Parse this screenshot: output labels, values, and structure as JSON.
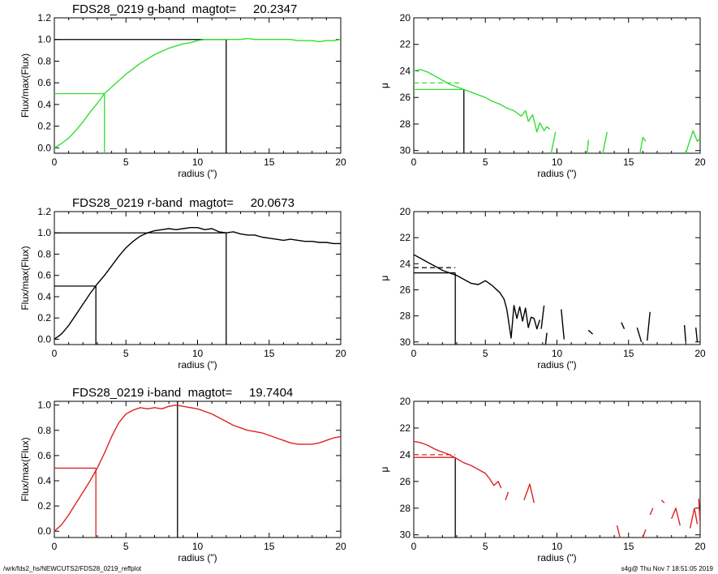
{
  "footer": {
    "left": "/wrk/fds2_hs/NEWCUTS2/FDS28_0219_reffplot",
    "right": "s4g@  Thu Nov  7 18:51:05 2019"
  },
  "chart_data": [
    {
      "type": "line",
      "title": "FDS28_0219 g-band  magtot=     20.2347",
      "xlabel": "radius (\")",
      "ylabel": "Flux/max(Flux)",
      "xlim": [
        0,
        20
      ],
      "ylim": [
        -0.05,
        1.2
      ],
      "xticks": [
        0,
        5,
        10,
        15,
        20
      ],
      "yticks": [
        0.0,
        0.2,
        0.4,
        0.6,
        0.8,
        1.0,
        1.2
      ],
      "color": "#33dd33",
      "series": [
        {
          "x": [
            0,
            0.5,
            1,
            1.5,
            2,
            2.5,
            3,
            3.5,
            4,
            4.5,
            5,
            5.5,
            6,
            6.5,
            7,
            7.5,
            8,
            8.5,
            9,
            9.5,
            10,
            10.5,
            11,
            11.5,
            12,
            12.5,
            13,
            13.5,
            14,
            14.5,
            15,
            15.5,
            16,
            16.5,
            17,
            17.5,
            18,
            18.5,
            19,
            19.5,
            20
          ],
          "y": [
            0.0,
            0.04,
            0.09,
            0.16,
            0.24,
            0.33,
            0.41,
            0.5,
            0.56,
            0.62,
            0.68,
            0.73,
            0.78,
            0.82,
            0.86,
            0.89,
            0.92,
            0.94,
            0.96,
            0.97,
            0.99,
            1.0,
            1.0,
            1.0,
            1.0,
            1.0,
            1.0,
            1.01,
            1.0,
            1.0,
            1.0,
            1.0,
            1.0,
            1.0,
            0.99,
            0.99,
            0.99,
            0.98,
            0.99,
            0.99,
            1.0
          ]
        }
      ],
      "reference_lines": [
        {
          "from": [
            0,
            0.5
          ],
          "to": [
            3.5,
            0.5
          ],
          "color": "#33dd33"
        },
        {
          "from": [
            3.5,
            0.5
          ],
          "to": [
            3.5,
            -0.05
          ],
          "color": "#33dd33"
        },
        {
          "from": [
            0,
            1.0
          ],
          "to": [
            12,
            1.0
          ],
          "color": "#000000"
        },
        {
          "from": [
            12,
            1.0
          ],
          "to": [
            12,
            -0.05
          ],
          "color": "#000000"
        }
      ]
    },
    {
      "type": "line",
      "title": "",
      "xlabel": "radius (\")",
      "ylabel": "μ",
      "xlim": [
        0,
        20
      ],
      "ylim": [
        30.2,
        20
      ],
      "xticks": [
        0,
        5,
        10,
        15,
        20
      ],
      "yticks": [
        20,
        22,
        24,
        26,
        28,
        30
      ],
      "color": "#33dd33",
      "segments": [
        {
          "x": [
            0,
            0.5,
            1,
            1.5,
            2,
            2.5,
            3,
            3.5,
            4,
            4.5,
            5,
            5.5,
            6,
            6.5,
            7,
            7.5,
            7.8,
            8,
            8.3,
            8.6,
            8.8,
            9.1,
            9.3,
            9.5
          ],
          "y": [
            24.0,
            23.9,
            24.1,
            24.4,
            24.7,
            25.0,
            25.2,
            25.4,
            25.6,
            25.8,
            26.0,
            26.3,
            26.5,
            26.8,
            27.0,
            27.4,
            27.0,
            27.8,
            27.3,
            28.6,
            27.9,
            28.5,
            28.2,
            28.4
          ]
        },
        {
          "x": [
            9.6,
            9.9
          ],
          "y": [
            30.2,
            28.6
          ]
        },
        {
          "x": [
            12.1,
            12.2
          ],
          "y": [
            30.2,
            29.2
          ]
        },
        {
          "x": [
            13.2,
            13.5
          ],
          "y": [
            30.2,
            28.6
          ]
        },
        {
          "x": [
            15.8,
            16.0,
            16.2
          ],
          "y": [
            30.2,
            29.0,
            29.3
          ]
        },
        {
          "x": [
            19.0,
            19.5,
            19.8,
            20.0
          ],
          "y": [
            30.2,
            28.5,
            29.3,
            29.1
          ]
        }
      ],
      "reference_lines": [
        {
          "from": [
            0,
            25.4
          ],
          "to": [
            3.5,
            25.4
          ],
          "color": "#33dd33"
        },
        {
          "from": [
            0,
            24.9
          ],
          "to": [
            3.2,
            24.9
          ],
          "color": "#33dd33",
          "dashed": true
        },
        {
          "from": [
            3.5,
            25.4
          ],
          "to": [
            3.5,
            30.2
          ],
          "color": "#000000"
        }
      ]
    },
    {
      "type": "line",
      "title": "FDS28_0219 r-band  magtot=     20.0673",
      "xlabel": "radius (\")",
      "ylabel": "Flux/max(Flux)",
      "xlim": [
        0,
        20
      ],
      "ylim": [
        -0.05,
        1.2
      ],
      "xticks": [
        0,
        5,
        10,
        15,
        20
      ],
      "yticks": [
        0.0,
        0.2,
        0.4,
        0.6,
        0.8,
        1.0,
        1.2
      ],
      "color": "#000000",
      "series": [
        {
          "x": [
            0,
            0.5,
            1,
            1.5,
            2,
            2.5,
            3,
            3.5,
            4,
            4.5,
            5,
            5.5,
            6,
            6.5,
            7,
            7.5,
            8,
            8.5,
            9,
            9.5,
            10,
            10.5,
            11,
            11.5,
            12,
            12.5,
            13,
            13.5,
            14,
            14.5,
            15,
            15.5,
            16,
            16.5,
            17,
            17.5,
            18,
            18.5,
            19,
            19.5,
            20
          ],
          "y": [
            0.0,
            0.05,
            0.13,
            0.23,
            0.33,
            0.43,
            0.52,
            0.6,
            0.69,
            0.78,
            0.86,
            0.92,
            0.97,
            1.0,
            1.02,
            1.03,
            1.04,
            1.03,
            1.04,
            1.05,
            1.05,
            1.03,
            1.04,
            1.01,
            1.0,
            1.01,
            0.99,
            0.98,
            0.98,
            0.96,
            0.95,
            0.94,
            0.93,
            0.94,
            0.93,
            0.92,
            0.92,
            0.91,
            0.91,
            0.9,
            0.9
          ]
        }
      ],
      "reference_lines": [
        {
          "from": [
            0,
            0.5
          ],
          "to": [
            2.9,
            0.5
          ],
          "color": "#000000"
        },
        {
          "from": [
            2.9,
            0.5
          ],
          "to": [
            2.9,
            -0.05
          ],
          "color": "#000000"
        },
        {
          "from": [
            0,
            1.0
          ],
          "to": [
            12,
            1.0
          ],
          "color": "#000000"
        },
        {
          "from": [
            12,
            1.0
          ],
          "to": [
            12,
            -0.05
          ],
          "color": "#000000"
        }
      ]
    },
    {
      "type": "line",
      "title": "",
      "xlabel": "radius (\")",
      "ylabel": "μ",
      "xlim": [
        0,
        20
      ],
      "ylim": [
        30.2,
        20
      ],
      "xticks": [
        0,
        5,
        10,
        15,
        20
      ],
      "yticks": [
        20,
        22,
        24,
        26,
        28,
        30
      ],
      "color": "#000000",
      "segments": [
        {
          "x": [
            0,
            0.5,
            1,
            1.5,
            2,
            2.5,
            3,
            3.5,
            4,
            4.5,
            5,
            5.5,
            6,
            6.3,
            6.5,
            6.8,
            7.0,
            7.2,
            7.4,
            7.6,
            7.8,
            8.0,
            8.2,
            8.4,
            8.6,
            8.8
          ],
          "y": [
            23.3,
            23.6,
            23.9,
            24.2,
            24.5,
            24.7,
            24.9,
            25.2,
            25.5,
            25.6,
            25.3,
            25.7,
            26.2,
            26.7,
            27.5,
            29.7,
            27.2,
            28.2,
            27.3,
            28.4,
            27.4,
            28.9,
            28.1,
            28.2,
            29.0,
            28.3
          ]
        },
        {
          "x": [
            8.9,
            9.1
          ],
          "y": [
            29.0,
            27.2
          ]
        },
        {
          "x": [
            9.2,
            9.3
          ],
          "y": [
            30.2,
            29.3
          ]
        },
        {
          "x": [
            10.3,
            10.5
          ],
          "y": [
            27.5,
            29.8
          ]
        },
        {
          "x": [
            12.2,
            12.5
          ],
          "y": [
            29.1,
            29.4
          ]
        },
        {
          "x": [
            14.5,
            14.7
          ],
          "y": [
            28.5,
            29.0
          ]
        },
        {
          "x": [
            15.6,
            15.9
          ],
          "y": [
            28.9,
            30.0
          ]
        },
        {
          "x": [
            16.3,
            16.5
          ],
          "y": [
            29.9,
            27.7
          ]
        },
        {
          "x": [
            18.9,
            19.0
          ],
          "y": [
            28.7,
            30.0
          ]
        },
        {
          "x": [
            19.7,
            19.8
          ],
          "y": [
            28.9,
            30.0
          ]
        }
      ],
      "reference_lines": [
        {
          "from": [
            0,
            24.7
          ],
          "to": [
            2.9,
            24.7
          ],
          "color": "#000000"
        },
        {
          "from": [
            0,
            24.3
          ],
          "to": [
            2.9,
            24.3
          ],
          "color": "#000000",
          "dashed": true
        },
        {
          "from": [
            2.9,
            24.7
          ],
          "to": [
            2.9,
            30.2
          ],
          "color": "#000000"
        }
      ]
    },
    {
      "type": "line",
      "title": "FDS28_0219 i-band  magtot=     19.7404",
      "xlabel": "radius (\")",
      "ylabel": "Flux/max(Flux)",
      "xlim": [
        0,
        20
      ],
      "ylim": [
        -0.05,
        1.03
      ],
      "xticks": [
        0,
        5,
        10,
        15,
        20
      ],
      "yticks": [
        0.0,
        0.2,
        0.4,
        0.6,
        0.8,
        1.0
      ],
      "color": "#dd2222",
      "series": [
        {
          "x": [
            0,
            0.5,
            1,
            1.5,
            2,
            2.5,
            3,
            3.5,
            4,
            4.5,
            5,
            5.5,
            6,
            6.5,
            7,
            7.5,
            8,
            8.5,
            9,
            9.5,
            10,
            10.5,
            11,
            11.5,
            12,
            12.5,
            13,
            13.5,
            14,
            14.5,
            15,
            15.5,
            16,
            16.5,
            17,
            17.5,
            18,
            18.5,
            19,
            19.5,
            20
          ],
          "y": [
            0.0,
            0.05,
            0.13,
            0.22,
            0.31,
            0.4,
            0.5,
            0.62,
            0.75,
            0.86,
            0.93,
            0.96,
            0.98,
            0.97,
            0.98,
            0.97,
            0.99,
            1.0,
            0.99,
            0.98,
            0.97,
            0.95,
            0.93,
            0.9,
            0.87,
            0.84,
            0.82,
            0.8,
            0.79,
            0.78,
            0.76,
            0.74,
            0.72,
            0.7,
            0.69,
            0.69,
            0.69,
            0.7,
            0.72,
            0.74,
            0.75
          ]
        }
      ],
      "reference_lines": [
        {
          "from": [
            0,
            0.5
          ],
          "to": [
            2.9,
            0.5
          ],
          "color": "#dd2222"
        },
        {
          "from": [
            2.9,
            0.5
          ],
          "to": [
            2.9,
            -0.05
          ],
          "color": "#dd2222"
        },
        {
          "from": [
            8.6,
            1.03
          ],
          "to": [
            8.6,
            -0.05
          ],
          "color": "#000000"
        }
      ]
    },
    {
      "type": "line",
      "title": "",
      "xlabel": "radius (\")",
      "ylabel": "μ",
      "xlim": [
        0,
        20
      ],
      "ylim": [
        30.2,
        20
      ],
      "xticks": [
        0,
        5,
        10,
        15,
        20
      ],
      "yticks": [
        20,
        22,
        24,
        26,
        28,
        30
      ],
      "color": "#dd2222",
      "segments": [
        {
          "x": [
            0,
            0.5,
            1,
            1.5,
            2,
            2.5,
            3,
            3.5,
            4,
            4.5,
            5,
            5.3,
            5.6,
            5.9,
            6.1
          ],
          "y": [
            23.0,
            23.1,
            23.3,
            23.6,
            23.8,
            24.0,
            24.3,
            24.6,
            24.8,
            25.1,
            25.4,
            25.8,
            26.3,
            26.0,
            26.5
          ]
        },
        {
          "x": [
            6.4,
            6.6
          ],
          "y": [
            27.4,
            26.8
          ]
        },
        {
          "x": [
            7.7,
            8.1,
            8.4
          ],
          "y": [
            27.4,
            26.2,
            27.6
          ]
        },
        {
          "x": [
            14.2,
            14.4
          ],
          "y": [
            29.3,
            30.2
          ]
        },
        {
          "x": [
            16.0,
            16.2
          ],
          "y": [
            30.2,
            29.6
          ]
        },
        {
          "x": [
            16.5,
            16.7
          ],
          "y": [
            28.5,
            28.0
          ]
        },
        {
          "x": [
            17.3,
            17.5
          ],
          "y": [
            27.4,
            27.6
          ]
        },
        {
          "x": [
            18.0,
            18.3,
            18.6
          ],
          "y": [
            28.8,
            28.0,
            29.3
          ]
        },
        {
          "x": [
            19.3,
            19.6,
            19.8
          ],
          "y": [
            29.5,
            28.0,
            29.2
          ]
        },
        {
          "x": [
            19.9,
            20.0
          ],
          "y": [
            27.3,
            29.1
          ]
        }
      ],
      "reference_lines": [
        {
          "from": [
            0,
            24.2
          ],
          "to": [
            2.9,
            24.2
          ],
          "color": "#dd2222"
        },
        {
          "from": [
            0,
            24.0
          ],
          "to": [
            2.9,
            24.0
          ],
          "color": "#dd2222",
          "dashed": true
        },
        {
          "from": [
            2.9,
            24.2
          ],
          "to": [
            2.9,
            30.2
          ],
          "color": "#000000"
        }
      ]
    }
  ]
}
